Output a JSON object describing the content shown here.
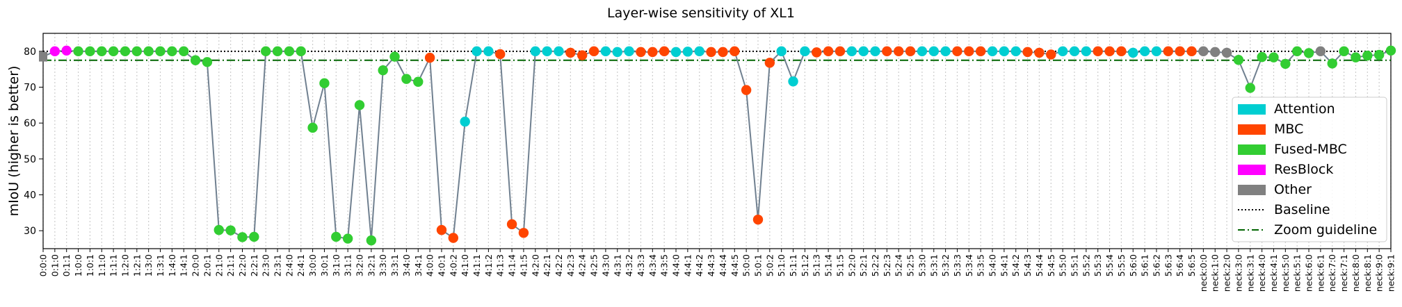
{
  "chart_data": {
    "type": "line",
    "title": "Layer-wise sensitivity of XL1",
    "xlabel": "",
    "ylabel": "mIoU (higher is better)",
    "ylim": [
      25,
      85
    ],
    "yticks": [
      30,
      40,
      50,
      60,
      70,
      80
    ],
    "grid": "vertical dotted",
    "legend_position": "lower-right",
    "baseline": 80.0,
    "zoom_guideline": 77.5,
    "colors": {
      "Attention": "#00CED1",
      "MBC": "#FF4500",
      "Fused-MBC": "#32CD32",
      "ResBlock": "#FF00FF",
      "Other": "#808080",
      "line": "#708090",
      "baseline": "#000000",
      "zoom": "#006400"
    },
    "legend": [
      {
        "label": "Attention",
        "kind": "patch",
        "key": "Attention"
      },
      {
        "label": "MBC",
        "kind": "patch",
        "key": "MBC"
      },
      {
        "label": "Fused-MBC",
        "kind": "patch",
        "key": "Fused-MBC"
      },
      {
        "label": "ResBlock",
        "kind": "patch",
        "key": "ResBlock"
      },
      {
        "label": "Other",
        "kind": "patch",
        "key": "Other"
      },
      {
        "label": "Baseline",
        "kind": "dotted",
        "key": "baseline"
      },
      {
        "label": "Zoom guideline",
        "kind": "dashdot",
        "key": "zoom"
      }
    ],
    "points": [
      {
        "x": "0:0:0",
        "y": 78.5,
        "cat": "Other"
      },
      {
        "x": "0:1:0",
        "y": 80.0,
        "cat": "ResBlock"
      },
      {
        "x": "0:1:1",
        "y": 80.2,
        "cat": "ResBlock"
      },
      {
        "x": "1:0:0",
        "y": 80.0,
        "cat": "Fused-MBC"
      },
      {
        "x": "1:0:1",
        "y": 80.0,
        "cat": "Fused-MBC"
      },
      {
        "x": "1:1:0",
        "y": 80.0,
        "cat": "Fused-MBC"
      },
      {
        "x": "1:1:1",
        "y": 80.0,
        "cat": "Fused-MBC"
      },
      {
        "x": "1:2:0",
        "y": 80.0,
        "cat": "Fused-MBC"
      },
      {
        "x": "1:2:1",
        "y": 80.0,
        "cat": "Fused-MBC"
      },
      {
        "x": "1:3:0",
        "y": 80.0,
        "cat": "Fused-MBC"
      },
      {
        "x": "1:3:1",
        "y": 80.0,
        "cat": "Fused-MBC"
      },
      {
        "x": "1:4:0",
        "y": 80.0,
        "cat": "Fused-MBC"
      },
      {
        "x": "1:4:1",
        "y": 80.0,
        "cat": "Fused-MBC"
      },
      {
        "x": "2:0:0",
        "y": 77.5,
        "cat": "Fused-MBC"
      },
      {
        "x": "2:0:1",
        "y": 77.0,
        "cat": "Fused-MBC"
      },
      {
        "x": "2:1:0",
        "y": 30.2,
        "cat": "Fused-MBC"
      },
      {
        "x": "2:1:1",
        "y": 30.1,
        "cat": "Fused-MBC"
      },
      {
        "x": "2:2:0",
        "y": 28.2,
        "cat": "Fused-MBC"
      },
      {
        "x": "2:2:1",
        "y": 28.3,
        "cat": "Fused-MBC"
      },
      {
        "x": "2:3:0",
        "y": 80.0,
        "cat": "Fused-MBC"
      },
      {
        "x": "2:3:1",
        "y": 80.0,
        "cat": "Fused-MBC"
      },
      {
        "x": "2:4:0",
        "y": 80.0,
        "cat": "Fused-MBC"
      },
      {
        "x": "2:4:1",
        "y": 80.0,
        "cat": "Fused-MBC"
      },
      {
        "x": "3:0:0",
        "y": 58.7,
        "cat": "Fused-MBC"
      },
      {
        "x": "3:0:1",
        "y": 71.1,
        "cat": "Fused-MBC"
      },
      {
        "x": "3:1:0",
        "y": 28.3,
        "cat": "Fused-MBC"
      },
      {
        "x": "3:1:1",
        "y": 27.8,
        "cat": "Fused-MBC"
      },
      {
        "x": "3:2:0",
        "y": 65.0,
        "cat": "Fused-MBC"
      },
      {
        "x": "3:2:1",
        "y": 27.3,
        "cat": "Fused-MBC"
      },
      {
        "x": "3:3:0",
        "y": 74.7,
        "cat": "Fused-MBC"
      },
      {
        "x": "3:3:1",
        "y": 78.5,
        "cat": "Fused-MBC"
      },
      {
        "x": "3:4:0",
        "y": 72.3,
        "cat": "Fused-MBC"
      },
      {
        "x": "3:4:1",
        "y": 71.5,
        "cat": "Fused-MBC"
      },
      {
        "x": "4:0:0",
        "y": 78.2,
        "cat": "MBC"
      },
      {
        "x": "4:0:1",
        "y": 30.2,
        "cat": "MBC"
      },
      {
        "x": "4:0:2",
        "y": 28.0,
        "cat": "MBC"
      },
      {
        "x": "4:1:0",
        "y": 60.4,
        "cat": "Attention"
      },
      {
        "x": "4:1:1",
        "y": 80.0,
        "cat": "Attention"
      },
      {
        "x": "4:1:2",
        "y": 80.0,
        "cat": "Attention"
      },
      {
        "x": "4:1:3",
        "y": 79.2,
        "cat": "MBC"
      },
      {
        "x": "4:1:4",
        "y": 31.8,
        "cat": "MBC"
      },
      {
        "x": "4:1:5",
        "y": 29.4,
        "cat": "MBC"
      },
      {
        "x": "4:2:0",
        "y": 80.0,
        "cat": "Attention"
      },
      {
        "x": "4:2:1",
        "y": 80.0,
        "cat": "Attention"
      },
      {
        "x": "4:2:2",
        "y": 80.0,
        "cat": "Attention"
      },
      {
        "x": "4:2:3",
        "y": 79.6,
        "cat": "MBC"
      },
      {
        "x": "4:2:4",
        "y": 78.9,
        "cat": "MBC"
      },
      {
        "x": "4:2:5",
        "y": 80.0,
        "cat": "MBC"
      },
      {
        "x": "4:3:0",
        "y": 80.0,
        "cat": "Attention"
      },
      {
        "x": "4:3:1",
        "y": 79.8,
        "cat": "Attention"
      },
      {
        "x": "4:3:2",
        "y": 80.0,
        "cat": "Attention"
      },
      {
        "x": "4:3:3",
        "y": 79.8,
        "cat": "MBC"
      },
      {
        "x": "4:3:4",
        "y": 79.8,
        "cat": "MBC"
      },
      {
        "x": "4:3:5",
        "y": 80.0,
        "cat": "MBC"
      },
      {
        "x": "4:4:0",
        "y": 79.8,
        "cat": "Attention"
      },
      {
        "x": "4:4:1",
        "y": 79.9,
        "cat": "Attention"
      },
      {
        "x": "4:4:2",
        "y": 80.0,
        "cat": "Attention"
      },
      {
        "x": "4:4:3",
        "y": 79.8,
        "cat": "MBC"
      },
      {
        "x": "4:4:4",
        "y": 79.8,
        "cat": "MBC"
      },
      {
        "x": "4:4:5",
        "y": 80.0,
        "cat": "MBC"
      },
      {
        "x": "5:0:0",
        "y": 69.2,
        "cat": "MBC"
      },
      {
        "x": "5:0:1",
        "y": 33.1,
        "cat": "MBC"
      },
      {
        "x": "5:0:2",
        "y": 76.8,
        "cat": "MBC"
      },
      {
        "x": "5:1:0",
        "y": 80.0,
        "cat": "Attention"
      },
      {
        "x": "5:1:1",
        "y": 71.6,
        "cat": "Attention"
      },
      {
        "x": "5:1:2",
        "y": 80.0,
        "cat": "Attention"
      },
      {
        "x": "5:1:3",
        "y": 79.7,
        "cat": "MBC"
      },
      {
        "x": "5:1:4",
        "y": 80.0,
        "cat": "MBC"
      },
      {
        "x": "5:1:5",
        "y": 80.0,
        "cat": "MBC"
      },
      {
        "x": "5:2:0",
        "y": 80.0,
        "cat": "Attention"
      },
      {
        "x": "5:2:1",
        "y": 80.0,
        "cat": "Attention"
      },
      {
        "x": "5:2:2",
        "y": 80.0,
        "cat": "Attention"
      },
      {
        "x": "5:2:3",
        "y": 80.0,
        "cat": "MBC"
      },
      {
        "x": "5:2:4",
        "y": 80.0,
        "cat": "MBC"
      },
      {
        "x": "5:2:5",
        "y": 80.0,
        "cat": "MBC"
      },
      {
        "x": "5:3:0",
        "y": 80.0,
        "cat": "Attention"
      },
      {
        "x": "5:3:1",
        "y": 80.0,
        "cat": "Attention"
      },
      {
        "x": "5:3:2",
        "y": 80.0,
        "cat": "Attention"
      },
      {
        "x": "5:3:3",
        "y": 80.0,
        "cat": "MBC"
      },
      {
        "x": "5:3:4",
        "y": 80.0,
        "cat": "MBC"
      },
      {
        "x": "5:3:5",
        "y": 80.0,
        "cat": "MBC"
      },
      {
        "x": "5:4:0",
        "y": 80.0,
        "cat": "Attention"
      },
      {
        "x": "5:4:1",
        "y": 80.0,
        "cat": "Attention"
      },
      {
        "x": "5:4:2",
        "y": 80.0,
        "cat": "Attention"
      },
      {
        "x": "5:4:3",
        "y": 79.8,
        "cat": "MBC"
      },
      {
        "x": "5:4:4",
        "y": 79.6,
        "cat": "MBC"
      },
      {
        "x": "5:4:5",
        "y": 79.1,
        "cat": "MBC"
      },
      {
        "x": "5:5:0",
        "y": 80.0,
        "cat": "Attention"
      },
      {
        "x": "5:5:1",
        "y": 80.0,
        "cat": "Attention"
      },
      {
        "x": "5:5:2",
        "y": 80.0,
        "cat": "Attention"
      },
      {
        "x": "5:5:3",
        "y": 80.0,
        "cat": "MBC"
      },
      {
        "x": "5:5:4",
        "y": 80.0,
        "cat": "MBC"
      },
      {
        "x": "5:5:5",
        "y": 80.0,
        "cat": "MBC"
      },
      {
        "x": "5:6:0",
        "y": 79.6,
        "cat": "Attention"
      },
      {
        "x": "5:6:1",
        "y": 80.0,
        "cat": "Attention"
      },
      {
        "x": "5:6:2",
        "y": 80.0,
        "cat": "Attention"
      },
      {
        "x": "5:6:3",
        "y": 80.0,
        "cat": "MBC"
      },
      {
        "x": "5:6:4",
        "y": 80.0,
        "cat": "MBC"
      },
      {
        "x": "5:6:5",
        "y": 80.0,
        "cat": "MBC"
      },
      {
        "x": "neck:0:0",
        "y": 80.0,
        "cat": "Other"
      },
      {
        "x": "neck:1:0",
        "y": 79.8,
        "cat": "Other"
      },
      {
        "x": "neck:2:0",
        "y": 79.6,
        "cat": "Other"
      },
      {
        "x": "neck:3:0",
        "y": 77.6,
        "cat": "Fused-MBC"
      },
      {
        "x": "neck:3:1",
        "y": 69.8,
        "cat": "Fused-MBC"
      },
      {
        "x": "neck:4:0",
        "y": 78.4,
        "cat": "Fused-MBC"
      },
      {
        "x": "neck:4:1",
        "y": 78.3,
        "cat": "Fused-MBC"
      },
      {
        "x": "neck:5:0",
        "y": 76.5,
        "cat": "Fused-MBC"
      },
      {
        "x": "neck:5:1",
        "y": 80.0,
        "cat": "Fused-MBC"
      },
      {
        "x": "neck:6:0",
        "y": 79.5,
        "cat": "Fused-MBC"
      },
      {
        "x": "neck:6:1",
        "y": 80.0,
        "cat": "Other"
      },
      {
        "x": "neck:7:0",
        "y": 76.6,
        "cat": "Fused-MBC"
      },
      {
        "x": "neck:7:1",
        "y": 80.0,
        "cat": "Fused-MBC"
      },
      {
        "x": "neck:8:0",
        "y": 78.3,
        "cat": "Fused-MBC"
      },
      {
        "x": "neck:8:1",
        "y": 78.8,
        "cat": "Fused-MBC"
      },
      {
        "x": "neck:9:0",
        "y": 79.0,
        "cat": "Fused-MBC"
      },
      {
        "x": "neck:9:1",
        "y": 80.2,
        "cat": "Fused-MBC"
      }
    ]
  }
}
